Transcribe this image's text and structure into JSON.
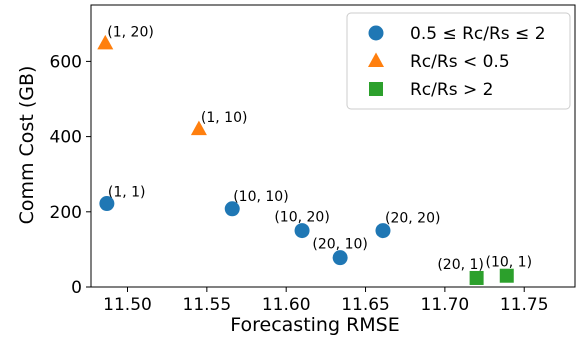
{
  "chart_data": {
    "type": "scatter",
    "title": "",
    "xlabel": "Forecasting RMSE",
    "ylabel": "Comm Cost (GB)",
    "xlim": [
      11.477,
      11.782
    ],
    "ylim": [
      0,
      750
    ],
    "xticks": [
      "11.50",
      "11.55",
      "11.60",
      "11.65",
      "11.70",
      "11.75"
    ],
    "xtick_values": [
      11.5,
      11.55,
      11.6,
      11.65,
      11.7,
      11.75
    ],
    "yticks": [
      "0",
      "200",
      "400",
      "600"
    ],
    "ytick_values": [
      0,
      200,
      400,
      600
    ],
    "grid": false,
    "legend_position": "top-right",
    "series": [
      {
        "name": "0.5 ≤ Rc/Rs ≤ 2",
        "marker": "circle",
        "color": "#1f77b4",
        "points": [
          {
            "x": 11.487,
            "y": 222,
            "label": "(1, 1)"
          },
          {
            "x": 11.566,
            "y": 208,
            "label": "(10, 10)"
          },
          {
            "x": 11.61,
            "y": 150,
            "label": "(10, 20)"
          },
          {
            "x": 11.634,
            "y": 78,
            "label": "(20, 10)"
          },
          {
            "x": 11.661,
            "y": 150,
            "label": "(20, 20)"
          }
        ]
      },
      {
        "name": "Rc/Rs < 0.5",
        "marker": "triangle",
        "color": "#ff7f0e",
        "points": [
          {
            "x": 11.486,
            "y": 648,
            "label": "(1, 20)"
          },
          {
            "x": 11.545,
            "y": 420,
            "label": "(1, 10)"
          }
        ]
      },
      {
        "name": "Rc/Rs > 2",
        "marker": "square",
        "color": "#2ca02c",
        "points": [
          {
            "x": 11.72,
            "y": 24,
            "label": "(20, 1)"
          },
          {
            "x": 11.739,
            "y": 30,
            "label": "(10, 1)"
          }
        ]
      }
    ]
  }
}
